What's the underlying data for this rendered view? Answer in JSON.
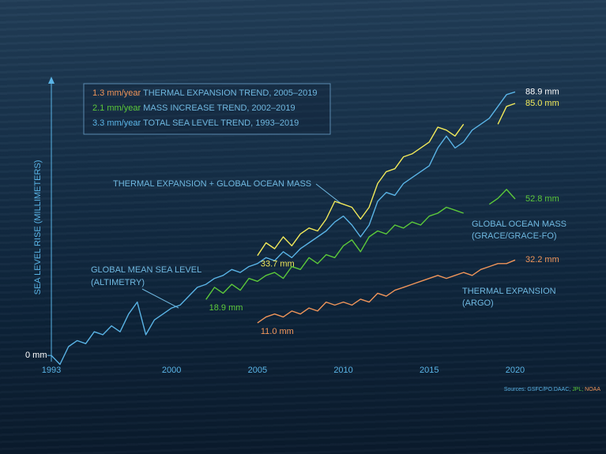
{
  "chart_data": {
    "type": "line",
    "ylabel": "SEA LEVEL RISE (MILLIMETERS)",
    "xlim": [
      1993,
      2020.6
    ],
    "xticks": [
      1993,
      2000,
      2005,
      2010,
      2015,
      2020
    ],
    "ylim": [
      -5,
      93
    ],
    "yticks": [
      {
        "value": 0,
        "label": "0 mm"
      }
    ],
    "legend": [
      {
        "rate": "1.3 mm/year",
        "text": "THERMAL EXPANSION TREND, 2005–2019",
        "color": "#f0955a"
      },
      {
        "rate": "2.1 mm/year",
        "text": "MASS INCREASE TREND, 2002–2019",
        "color": "#5cc93a"
      },
      {
        "rate": "3.3 mm/year",
        "text": "TOTAL SEA LEVEL TREND, 1993–2019",
        "color": "#5ab4e6"
      }
    ],
    "sources": [
      {
        "text": "Sources: GSFC/PO.DAAC;",
        "color": "#5ab4e6"
      },
      {
        "text": "JPL;",
        "color": "#5cc93a"
      },
      {
        "text": "NOAA",
        "color": "#f0955a"
      }
    ],
    "series": [
      {
        "label_lines": [
          "GLOBAL MEAN SEA LEVEL",
          "(ALTIMETRY)"
        ],
        "color": "#5ab4e6",
        "x": [
          1993.0,
          1993.5,
          1994.0,
          1994.5,
          1995.0,
          1995.5,
          1996.0,
          1996.5,
          1997.0,
          1997.5,
          1998.0,
          1998.5,
          1999.0,
          1999.5,
          2000.0,
          2000.5,
          2001.0,
          2001.5,
          2002.0,
          2002.5,
          2003.0,
          2003.5,
          2004.0,
          2004.5,
          2005.0,
          2005.5,
          2006.0,
          2006.5,
          2007.0,
          2007.5,
          2008.0,
          2008.5,
          2009.0,
          2009.5,
          2010.0,
          2010.5,
          2011.0,
          2011.5,
          2012.0,
          2012.5,
          2013.0,
          2013.5,
          2014.0,
          2014.5,
          2015.0,
          2015.5,
          2016.0,
          2016.5,
          2017.0,
          2017.5,
          2018.0,
          2018.5,
          2019.0,
          2019.5,
          2020.0
        ],
        "values": [
          0,
          -3,
          3,
          5,
          4,
          8,
          7,
          10,
          8,
          14,
          18,
          7,
          12,
          14,
          16,
          17,
          20,
          23,
          24,
          26,
          27,
          29,
          28,
          30,
          31,
          33,
          32,
          35,
          33,
          36,
          38,
          40,
          42,
          45,
          47,
          44,
          40,
          44,
          52,
          55,
          54,
          58,
          60,
          62,
          64,
          70,
          74,
          70,
          72,
          76,
          78,
          80,
          84,
          88,
          88.9
        ],
        "value_labels": [
          null,
          null,
          null,
          null,
          null,
          null,
          null,
          null,
          null,
          null,
          null,
          null,
          null,
          null,
          null,
          null,
          null,
          null,
          null,
          null,
          null,
          null,
          null,
          null,
          null,
          null,
          null,
          null,
          null,
          null,
          null,
          null,
          null,
          null,
          null,
          null,
          null,
          null,
          null,
          null,
          null,
          null,
          null,
          null,
          null,
          null,
          null,
          null,
          null,
          null,
          null,
          null,
          null,
          null,
          "88.9 mm"
        ]
      },
      {
        "label_lines": [
          "THERMAL EXPANSION + GLOBAL OCEAN MASS"
        ],
        "color": "#f2ea5a",
        "x": [
          2005.0,
          2005.5,
          2006.0,
          2006.5,
          2007.0,
          2007.5,
          2008.0,
          2008.5,
          2009.0,
          2009.5,
          2010.0,
          2010.5,
          2011.0,
          2011.5,
          2012.0,
          2012.5,
          2013.0,
          2013.5,
          2014.0,
          2014.5,
          2015.0,
          2015.5,
          2016.0,
          2016.5,
          2017.0,
          2017.5,
          2018.0,
          2018.5,
          2019.0,
          2019.5,
          2020.0
        ],
        "values": [
          33.7,
          38,
          36,
          40,
          37,
          41,
          43,
          42,
          46,
          52,
          51,
          50,
          46,
          50,
          58,
          62,
          63,
          67,
          68,
          70,
          72,
          77,
          76,
          74,
          78,
          null,
          null,
          null,
          78,
          84,
          85.0
        ],
        "value_labels": [
          "33.7 mm",
          null,
          null,
          null,
          null,
          null,
          null,
          null,
          null,
          null,
          null,
          null,
          null,
          null,
          null,
          null,
          null,
          null,
          null,
          null,
          null,
          null,
          null,
          null,
          null,
          null,
          null,
          null,
          null,
          null,
          "85.0 mm"
        ]
      },
      {
        "label_lines": [
          "GLOBAL OCEAN MASS",
          "(GRACE/GRACE-FO)"
        ],
        "color": "#5cc93a",
        "x": [
          2002.0,
          2002.5,
          2003.0,
          2003.5,
          2004.0,
          2004.5,
          2005.0,
          2005.5,
          2006.0,
          2006.5,
          2007.0,
          2007.5,
          2008.0,
          2008.5,
          2009.0,
          2009.5,
          2010.0,
          2010.5,
          2011.0,
          2011.5,
          2012.0,
          2012.5,
          2013.0,
          2013.5,
          2014.0,
          2014.5,
          2015.0,
          2015.5,
          2016.0,
          2016.5,
          2017.0,
          2017.5,
          2018.0,
          2018.5,
          2019.0,
          2019.5,
          2020.0
        ],
        "values": [
          18.9,
          23,
          21,
          24,
          22,
          26,
          25,
          27,
          28,
          26,
          30,
          29,
          33,
          31,
          34,
          33,
          37,
          39,
          35,
          40,
          42,
          41,
          44,
          43,
          45,
          44,
          47,
          48,
          50,
          49,
          48,
          null,
          null,
          51,
          53,
          56,
          52.8
        ],
        "value_labels": [
          "18.9 mm",
          null,
          null,
          null,
          null,
          null,
          null,
          null,
          null,
          null,
          null,
          null,
          null,
          null,
          null,
          null,
          null,
          null,
          null,
          null,
          null,
          null,
          null,
          null,
          null,
          null,
          null,
          null,
          null,
          null,
          null,
          null,
          null,
          null,
          null,
          null,
          "52.8 mm"
        ]
      },
      {
        "label_lines": [
          "THERMAL EXPANSION",
          "(ARGO)"
        ],
        "color": "#f0955a",
        "x": [
          2005.0,
          2005.5,
          2006.0,
          2006.5,
          2007.0,
          2007.5,
          2008.0,
          2008.5,
          2009.0,
          2009.5,
          2010.0,
          2010.5,
          2011.0,
          2011.5,
          2012.0,
          2012.5,
          2013.0,
          2013.5,
          2014.0,
          2014.5,
          2015.0,
          2015.5,
          2016.0,
          2016.5,
          2017.0,
          2017.5,
          2018.0,
          2018.5,
          2019.0,
          2019.5,
          2020.0
        ],
        "values": [
          11.0,
          13,
          14,
          13,
          15,
          14,
          16,
          15,
          18,
          17,
          18,
          17,
          19,
          18,
          21,
          20,
          22,
          23,
          24,
          25,
          26,
          27,
          26,
          27,
          28,
          27,
          29,
          30,
          31,
          31,
          32.2
        ],
        "value_labels": [
          "11.0 mm",
          null,
          null,
          null,
          null,
          null,
          null,
          null,
          null,
          null,
          null,
          null,
          null,
          null,
          null,
          null,
          null,
          null,
          null,
          null,
          null,
          null,
          null,
          null,
          null,
          null,
          null,
          null,
          null,
          null,
          "32.2 mm"
        ]
      }
    ]
  }
}
